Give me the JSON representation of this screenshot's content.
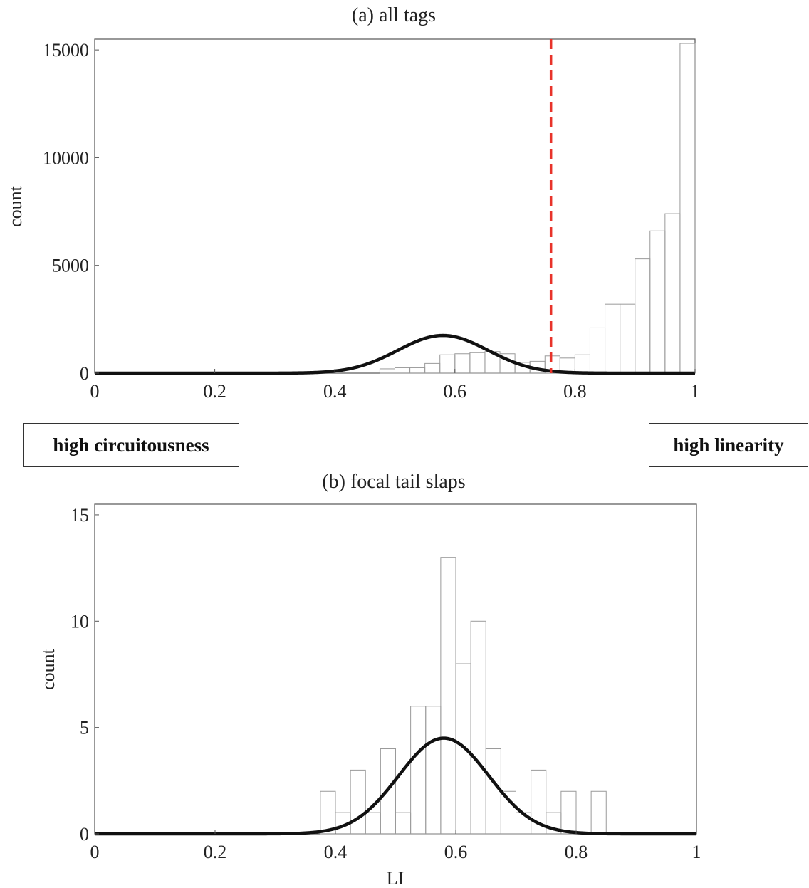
{
  "chart_data": [
    {
      "type": "bar",
      "title": "(a) all tags",
      "xlabel": "",
      "ylabel": "count",
      "xlim": [
        0,
        1
      ],
      "ylim": [
        0,
        15500
      ],
      "xticks": [
        "0",
        "0.2",
        "0.4",
        "0.6",
        "0.8",
        "1"
      ],
      "yticks": [
        "0",
        "5000",
        "10000",
        "15000"
      ],
      "bin_width": 0.025,
      "bins": [
        {
          "x0": 0.475,
          "value": 200
        },
        {
          "x0": 0.5,
          "value": 250
        },
        {
          "x0": 0.525,
          "value": 250
        },
        {
          "x0": 0.55,
          "value": 450
        },
        {
          "x0": 0.575,
          "value": 850
        },
        {
          "x0": 0.6,
          "value": 900
        },
        {
          "x0": 0.625,
          "value": 950
        },
        {
          "x0": 0.65,
          "value": 1000
        },
        {
          "x0": 0.675,
          "value": 900
        },
        {
          "x0": 0.7,
          "value": 500
        },
        {
          "x0": 0.725,
          "value": 550
        },
        {
          "x0": 0.75,
          "value": 800
        },
        {
          "x0": 0.775,
          "value": 700
        },
        {
          "x0": 0.8,
          "value": 850
        },
        {
          "x0": 0.825,
          "value": 2100
        },
        {
          "x0": 0.85,
          "value": 3200
        },
        {
          "x0": 0.875,
          "value": 3200
        },
        {
          "x0": 0.9,
          "value": 5300
        },
        {
          "x0": 0.925,
          "value": 6600
        },
        {
          "x0": 0.95,
          "value": 7400
        },
        {
          "x0": 0.975,
          "value": 15300
        }
      ],
      "fit_curve": {
        "type": "gaussian",
        "mean": 0.58,
        "sd": 0.075,
        "peak": 1750
      },
      "threshold_line": {
        "x": 0.76,
        "color": "#e8332a",
        "style": "dashed"
      }
    },
    {
      "type": "bar",
      "title": "(b) focal tail slaps",
      "xlabel": "LI",
      "ylabel": "count",
      "xlim": [
        0,
        1
      ],
      "ylim": [
        0,
        15.5
      ],
      "xticks": [
        "0",
        "0.2",
        "0.4",
        "0.6",
        "0.8",
        "1"
      ],
      "yticks": [
        "0",
        "5",
        "10",
        "15"
      ],
      "bin_width": 0.025,
      "bins": [
        {
          "x0": 0.375,
          "value": 2
        },
        {
          "x0": 0.4,
          "value": 1
        },
        {
          "x0": 0.425,
          "value": 3
        },
        {
          "x0": 0.45,
          "value": 1
        },
        {
          "x0": 0.475,
          "value": 4
        },
        {
          "x0": 0.5,
          "value": 1
        },
        {
          "x0": 0.525,
          "value": 6
        },
        {
          "x0": 0.55,
          "value": 6
        },
        {
          "x0": 0.575,
          "value": 13
        },
        {
          "x0": 0.6,
          "value": 8
        },
        {
          "x0": 0.625,
          "value": 10
        },
        {
          "x0": 0.65,
          "value": 4
        },
        {
          "x0": 0.675,
          "value": 2
        },
        {
          "x0": 0.7,
          "value": 1
        },
        {
          "x0": 0.725,
          "value": 3
        },
        {
          "x0": 0.75,
          "value": 1
        },
        {
          "x0": 0.775,
          "value": 2
        },
        {
          "x0": 0.8,
          "value": 0
        },
        {
          "x0": 0.825,
          "value": 2
        }
      ],
      "fit_curve": {
        "type": "gaussian",
        "mean": 0.58,
        "sd": 0.075,
        "peak": 4.5
      }
    }
  ],
  "callouts": {
    "left": "high circuitousness",
    "right": "high linearity"
  },
  "colors": {
    "bars": "#9a9a9a",
    "curve": "#111111",
    "threshold": "#e8332a"
  }
}
